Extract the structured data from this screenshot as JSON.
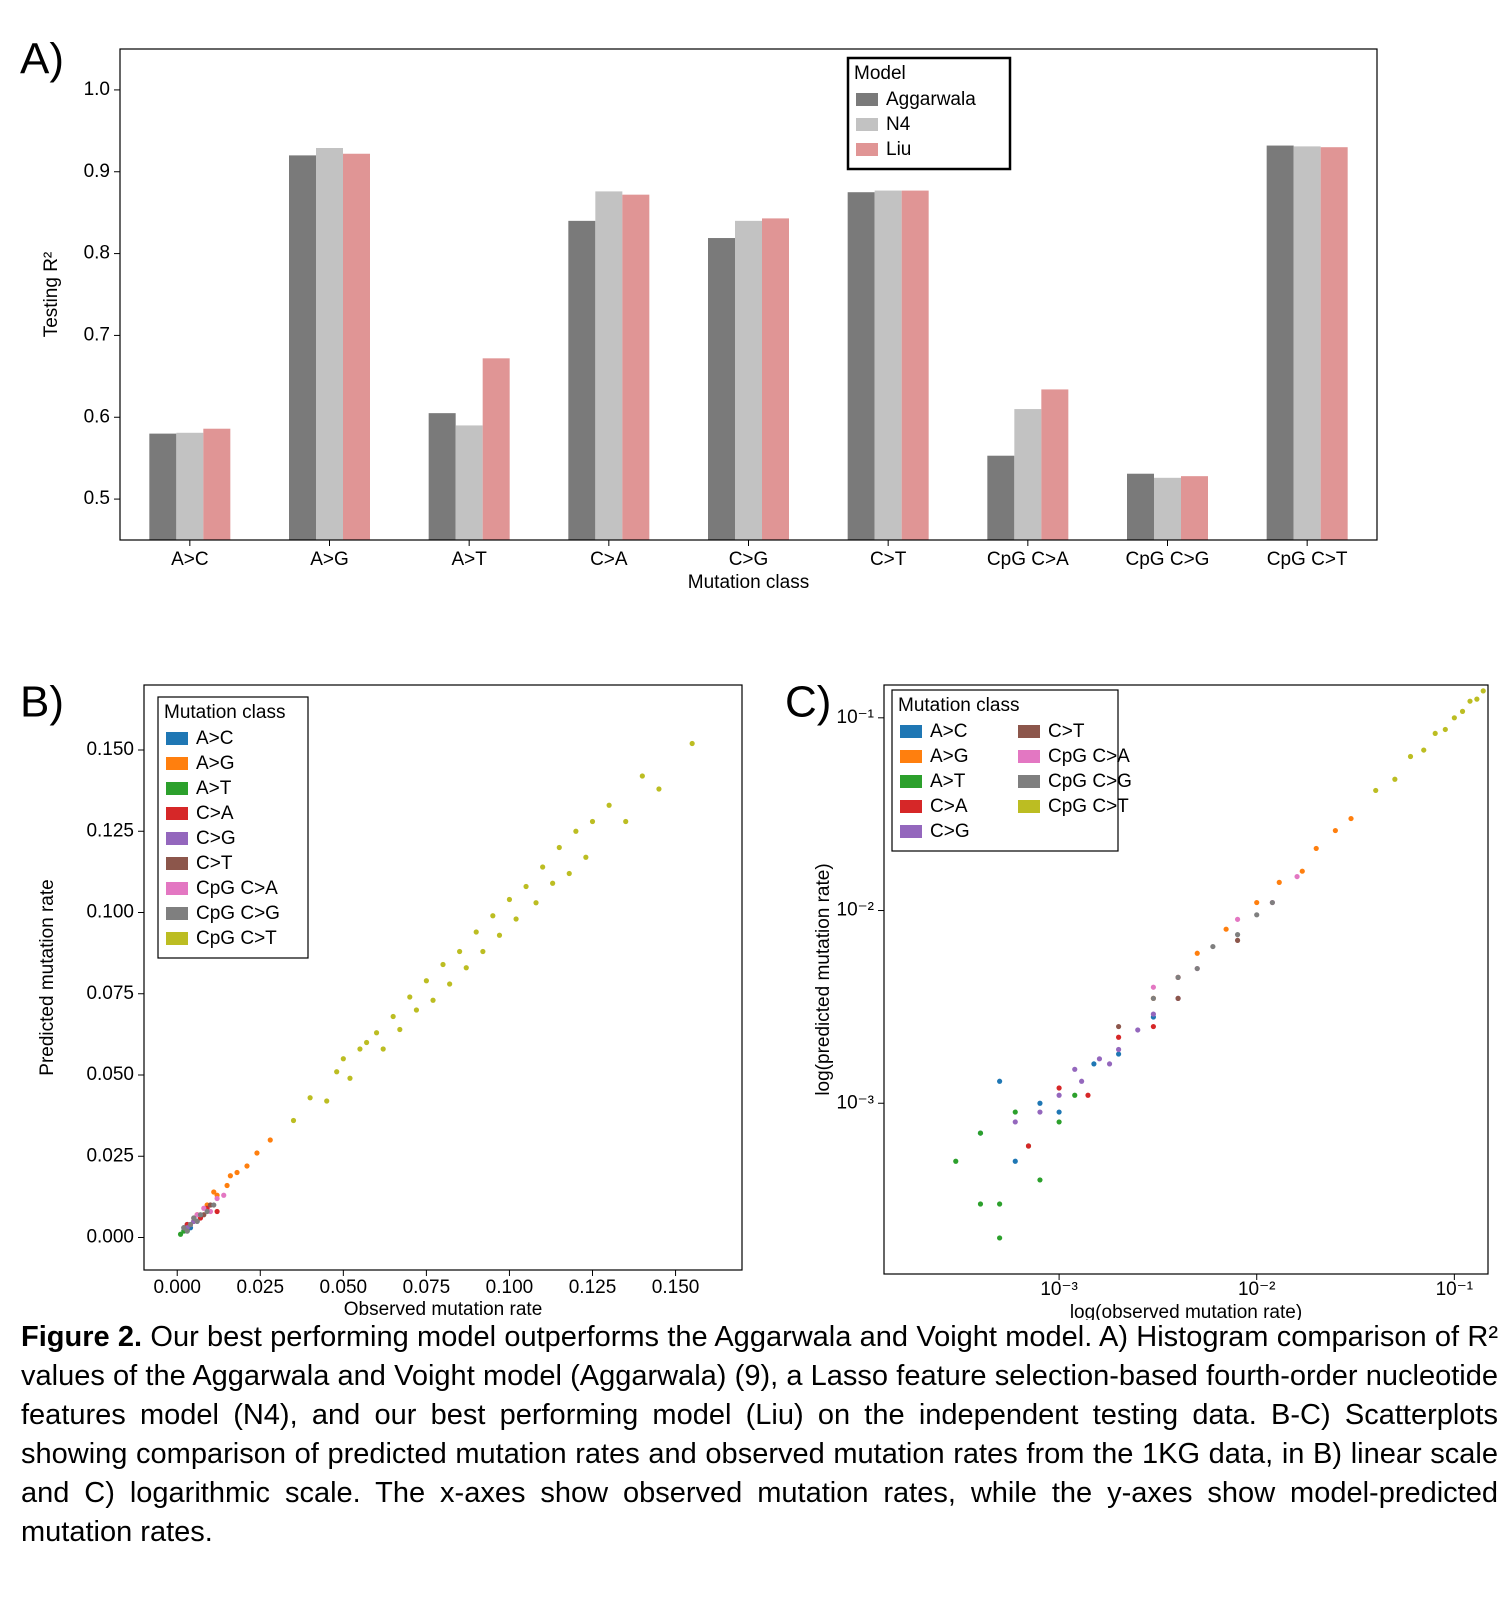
{
  "chart_data": [
    {
      "type": "bar",
      "label": "A)",
      "ylabel": "Testing R²",
      "xlabel": "Mutation class",
      "categories": [
        "A>C",
        "A>G",
        "A>T",
        "C>A",
        "C>G",
        "C>T",
        "CpG C>A",
        "CpG C>G",
        "CpG C>T"
      ],
      "series": [
        {
          "name": "Aggarwala",
          "color": "#7a7a7a",
          "values": [
            0.58,
            0.92,
            0.605,
            0.84,
            0.819,
            0.875,
            0.553,
            0.531,
            0.932
          ]
        },
        {
          "name": "N4",
          "color": "#c2c2c2",
          "values": [
            0.581,
            0.929,
            0.59,
            0.876,
            0.84,
            0.877,
            0.61,
            0.526,
            0.931
          ]
        },
        {
          "name": "Liu",
          "color": "#e09595",
          "values": [
            0.586,
            0.922,
            0.672,
            0.872,
            0.843,
            0.877,
            0.634,
            0.528,
            0.93
          ]
        }
      ],
      "ylim": [
        0.45,
        1.05
      ],
      "yticks": [
        0.5,
        0.6,
        0.7,
        0.8,
        0.9,
        {
          "value": 1,
          "label": "1.0"
        }
      ],
      "legend_title": "Model",
      "legend": "upper center"
    },
    {
      "type": "scatter",
      "label": "B)",
      "ylabel": "Predicted mutation rate",
      "xlabel": "Observed mutation rate",
      "xlim": [
        -0.01,
        0.17
      ],
      "ylim": [
        -0.01,
        0.17
      ],
      "xticks": [
        {
          "value": 0,
          "label": "0.000"
        },
        0.025,
        {
          "value": 0.05,
          "label": "0.050"
        },
        0.075,
        {
          "value": 0.1,
          "label": "0.100"
        },
        0.125,
        {
          "value": 0.15,
          "label": "0.150"
        }
      ],
      "yticks": [
        {
          "value": 0,
          "label": "0.000"
        },
        0.025,
        {
          "value": 0.05,
          "label": "0.050"
        },
        0.075,
        {
          "value": 0.1,
          "label": "0.100"
        },
        0.125,
        {
          "value": 0.15,
          "label": "0.150"
        }
      ],
      "legend_title": "Mutation class",
      "legend": "upper left",
      "series": [
        {
          "name": "A>C",
          "color": "#1f77b4",
          "x": [
            0.002,
            0.003,
            0.004,
            0.005,
            0.003,
            0.006
          ],
          "y": [
            0.002,
            0.004,
            0.003,
            0.005,
            0.002,
            0.005
          ]
        },
        {
          "name": "A>G",
          "color": "#ff7f0e",
          "x": [
            0.006,
            0.009,
            0.012,
            0.015,
            0.018,
            0.021,
            0.024,
            0.028,
            0.011,
            0.016
          ],
          "y": [
            0.007,
            0.01,
            0.013,
            0.016,
            0.02,
            0.022,
            0.026,
            0.03,
            0.014,
            0.019
          ]
        },
        {
          "name": "A>T",
          "color": "#2ca02c",
          "x": [
            0.001,
            0.002,
            0.003,
            0.002
          ],
          "y": [
            0.001,
            0.002,
            0.002,
            0.003
          ]
        },
        {
          "name": "C>A",
          "color": "#d62728",
          "x": [
            0.003,
            0.005,
            0.007,
            0.009,
            0.012
          ],
          "y": [
            0.004,
            0.005,
            0.006,
            0.009,
            0.008
          ]
        },
        {
          "name": "C>G",
          "color": "#9467bd",
          "x": [
            0.002,
            0.003,
            0.004,
            0.005
          ],
          "y": [
            0.003,
            0.003,
            0.004,
            0.005
          ]
        },
        {
          "name": "C>T",
          "color": "#8c564b",
          "x": [
            0.005,
            0.008,
            0.01
          ],
          "y": [
            0.006,
            0.007,
            0.01
          ]
        },
        {
          "name": "CpG C>A",
          "color": "#e377c2",
          "x": [
            0.006,
            0.008,
            0.01,
            0.012,
            0.014
          ],
          "y": [
            0.007,
            0.009,
            0.008,
            0.012,
            0.013
          ]
        },
        {
          "name": "CpG C>G",
          "color": "#7f7f7f",
          "x": [
            0.002,
            0.004,
            0.005,
            0.007,
            0.009,
            0.011,
            0.006,
            0.003
          ],
          "y": [
            0.003,
            0.004,
            0.006,
            0.007,
            0.008,
            0.01,
            0.005,
            0.002
          ]
        },
        {
          "name": "CpG C>T",
          "color": "#bcbd22",
          "x": [
            0.035,
            0.04,
            0.045,
            0.048,
            0.05,
            0.052,
            0.055,
            0.057,
            0.06,
            0.062,
            0.065,
            0.067,
            0.07,
            0.072,
            0.075,
            0.077,
            0.08,
            0.082,
            0.085,
            0.087,
            0.09,
            0.092,
            0.095,
            0.097,
            0.1,
            0.102,
            0.105,
            0.108,
            0.11,
            0.113,
            0.115,
            0.118,
            0.12,
            0.123,
            0.125,
            0.13,
            0.135,
            0.14,
            0.145,
            0.155
          ],
          "y": [
            0.036,
            0.043,
            0.042,
            0.051,
            0.055,
            0.049,
            0.058,
            0.06,
            0.063,
            0.058,
            0.068,
            0.064,
            0.074,
            0.07,
            0.079,
            0.073,
            0.084,
            0.078,
            0.088,
            0.083,
            0.094,
            0.088,
            0.099,
            0.093,
            0.104,
            0.098,
            0.108,
            0.103,
            0.114,
            0.109,
            0.12,
            0.112,
            0.125,
            0.117,
            0.128,
            0.133,
            0.128,
            0.142,
            0.138,
            0.152
          ]
        }
      ]
    },
    {
      "type": "scatter",
      "label": "C)",
      "ylabel": "log(predicted mutation rate)",
      "xlabel": "log(observed mutation rate)",
      "xscale": "log",
      "yscale": "log",
      "xlim": [
        0.00013,
        0.148
      ],
      "ylim": [
        0.00013,
        0.148
      ],
      "xticks": [
        {
          "value": 0.001,
          "label": "10⁻³"
        },
        {
          "value": 0.01,
          "label": "10⁻²"
        },
        {
          "value": 0.1,
          "label": "10⁻¹"
        }
      ],
      "yticks": [
        {
          "value": 0.001,
          "label": "10⁻³"
        },
        {
          "value": 0.01,
          "label": "10⁻²"
        },
        {
          "value": 0.1,
          "label": "10⁻¹"
        }
      ],
      "legend_title": "Mutation class",
      "legend": "upper left",
      "series": [
        {
          "name": "A>C",
          "color": "#1f77b4",
          "x": [
            0.0004,
            0.0006,
            0.0008,
            0.001,
            0.0015,
            0.002,
            0.003,
            0.0005
          ],
          "y": [
            0.0007,
            0.0005,
            0.001,
            0.0009,
            0.0016,
            0.0018,
            0.0028,
            0.0013
          ]
        },
        {
          "name": "A>G",
          "color": "#ff7f0e",
          "x": [
            0.003,
            0.005,
            0.007,
            0.01,
            0.013,
            0.017,
            0.02,
            0.025,
            0.03
          ],
          "y": [
            0.0035,
            0.006,
            0.008,
            0.011,
            0.014,
            0.016,
            0.021,
            0.026,
            0.03
          ]
        },
        {
          "name": "A>T",
          "color": "#2ca02c",
          "x": [
            0.0003,
            0.0004,
            0.0005,
            0.0006,
            0.0007,
            0.0008,
            0.001,
            0.0012,
            0.0005,
            0.0004
          ],
          "y": [
            0.0005,
            0.0007,
            0.0003,
            0.0009,
            0.0006,
            0.0004,
            0.0008,
            0.0011,
            0.0002,
            0.0003
          ]
        },
        {
          "name": "C>A",
          "color": "#d62728",
          "x": [
            0.0007,
            0.001,
            0.0014,
            0.002,
            0.003,
            0.004
          ],
          "y": [
            0.0006,
            0.0012,
            0.0011,
            0.0022,
            0.0025,
            0.0045
          ]
        },
        {
          "name": "C>G",
          "color": "#9467bd",
          "x": [
            0.0006,
            0.0008,
            0.001,
            0.0013,
            0.0016,
            0.002,
            0.0025,
            0.003,
            0.004,
            0.0012,
            0.0018
          ],
          "y": [
            0.0008,
            0.0009,
            0.0011,
            0.0013,
            0.0017,
            0.0019,
            0.0024,
            0.0029,
            0.0035,
            0.0015,
            0.0016
          ]
        },
        {
          "name": "C>T",
          "color": "#8c564b",
          "x": [
            0.002,
            0.004,
            0.008
          ],
          "y": [
            0.0025,
            0.0035,
            0.007
          ]
        },
        {
          "name": "CpG C>A",
          "color": "#e377c2",
          "x": [
            0.003,
            0.005,
            0.008,
            0.012,
            0.016
          ],
          "y": [
            0.004,
            0.005,
            0.009,
            0.011,
            0.015
          ]
        },
        {
          "name": "CpG C>G",
          "color": "#7f7f7f",
          "x": [
            0.003,
            0.004,
            0.005,
            0.006,
            0.008,
            0.01,
            0.012
          ],
          "y": [
            0.0035,
            0.0045,
            0.005,
            0.0065,
            0.0075,
            0.0095,
            0.011
          ]
        },
        {
          "name": "CpG C>T",
          "color": "#bcbd22",
          "x": [
            0.04,
            0.05,
            0.06,
            0.07,
            0.08,
            0.09,
            0.1,
            0.11,
            0.12,
            0.13,
            0.14
          ],
          "y": [
            0.042,
            0.048,
            0.063,
            0.068,
            0.083,
            0.087,
            0.1,
            0.108,
            0.122,
            0.125,
            0.138
          ]
        }
      ]
    }
  ],
  "caption": {
    "label": "Figure 2.",
    "text": "Our best performing model outperforms the Aggarwala and Voight model. A) Histogram comparison of R² values of the Aggarwala and Voight model (Aggarwala) (9), a Lasso feature selection-based fourth-order nucleotide features model (N4), and our best performing model (Liu) on the independent testing data. B-C) Scatterplots showing comparison of predicted mutation rates and observed mutation rates from the 1KG data, in B) linear scale and C) logarithmic scale. The x-axes show observed mutation rates, while the y-axes show model-predicted mutation rates."
  }
}
